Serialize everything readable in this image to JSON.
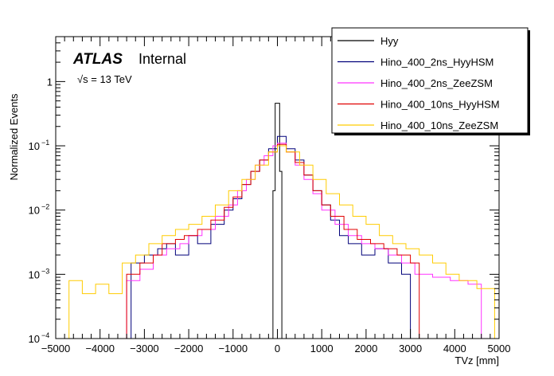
{
  "chart_data": {
    "type": "line",
    "title": "",
    "xlabel": "TVz [mm]",
    "ylabel": "Normalized Events",
    "xlim": [
      -5000,
      5000
    ],
    "ylim": [
      0.0001,
      5
    ],
    "yscale": "log",
    "x_ticks": [
      -5000,
      -4000,
      -3000,
      -2000,
      -1000,
      0,
      1000,
      2000,
      3000,
      4000,
      5000
    ],
    "x_tick_labels": [
      "−5000",
      "−4000",
      "−3000",
      "−2000",
      "−1000",
      "0",
      "1000",
      "2000",
      "3000",
      "4000",
      "5000"
    ],
    "y_ticks": [
      {
        "value": 0.0001,
        "label": "10",
        "exp": "−4"
      },
      {
        "value": 0.001,
        "label": "10",
        "exp": "−3"
      },
      {
        "value": 0.01,
        "label": "10",
        "exp": "−2"
      },
      {
        "value": 0.1,
        "label": "10",
        "exp": "−1"
      },
      {
        "value": 1,
        "label": "1",
        "exp": ""
      }
    ],
    "annotations": {
      "experiment": "ATLAS",
      "status": "Internal",
      "energy": "√s = 13 TeV"
    },
    "legend_position": "top-right",
    "series": [
      {
        "name": "Hyy",
        "color": "#000000",
        "points": [
          [
            -100,
            0.0001
          ],
          [
            -100,
            0.02
          ],
          [
            -50,
            0.05
          ],
          [
            -50,
            0.46
          ],
          [
            50,
            0.46
          ],
          [
            50,
            0.04
          ],
          [
            100,
            0.02
          ],
          [
            100,
            0.0001
          ]
        ]
      },
      {
        "name": "Hino_400_2ns_HyyHSM",
        "color": "#00007a",
        "points": [
          [
            -3400,
            0.0001
          ],
          [
            -3300,
            0.0015
          ],
          [
            -3000,
            0.002
          ],
          [
            -2700,
            0.0025
          ],
          [
            -2500,
            0.003
          ],
          [
            -2300,
            0.002
          ],
          [
            -2000,
            0.004
          ],
          [
            -1800,
            0.003
          ],
          [
            -1500,
            0.006
          ],
          [
            -1200,
            0.01
          ],
          [
            -1000,
            0.015
          ],
          [
            -800,
            0.025
          ],
          [
            -600,
            0.04
          ],
          [
            -400,
            0.06
          ],
          [
            -200,
            0.09
          ],
          [
            0,
            0.14
          ],
          [
            200,
            0.09
          ],
          [
            400,
            0.06
          ],
          [
            600,
            0.035
          ],
          [
            800,
            0.02
          ],
          [
            1000,
            0.012
          ],
          [
            1200,
            0.007
          ],
          [
            1400,
            0.004
          ],
          [
            1600,
            0.003
          ],
          [
            1900,
            0.002
          ],
          [
            2200,
            0.0025
          ],
          [
            2500,
            0.0015
          ],
          [
            2800,
            0.001
          ],
          [
            3000,
            0.0001
          ]
        ]
      },
      {
        "name": "Hino_400_2ns_ZeeZSM",
        "color": "#ff33ff",
        "points": [
          [
            -3500,
            0.0001
          ],
          [
            -3400,
            0.0008
          ],
          [
            -3100,
            0.0012
          ],
          [
            -2800,
            0.002
          ],
          [
            -2500,
            0.0025
          ],
          [
            -2200,
            0.003
          ],
          [
            -2000,
            0.004
          ],
          [
            -1700,
            0.005
          ],
          [
            -1400,
            0.008
          ],
          [
            -1100,
            0.012
          ],
          [
            -900,
            0.02
          ],
          [
            -700,
            0.03
          ],
          [
            -500,
            0.05
          ],
          [
            -300,
            0.07
          ],
          [
            -100,
            0.1
          ],
          [
            0,
            0.11
          ],
          [
            200,
            0.08
          ],
          [
            400,
            0.05
          ],
          [
            600,
            0.03
          ],
          [
            800,
            0.018
          ],
          [
            1000,
            0.01
          ],
          [
            1300,
            0.006
          ],
          [
            1600,
            0.004
          ],
          [
            1900,
            0.003
          ],
          [
            2200,
            0.0025
          ],
          [
            2500,
            0.002
          ],
          [
            2800,
            0.0015
          ],
          [
            3100,
            0.001
          ],
          [
            3500,
            0.0009
          ],
          [
            3900,
            0.0008
          ],
          [
            4300,
            0.0007
          ],
          [
            4600,
            0.0001
          ]
        ]
      },
      {
        "name": "Hino_400_10ns_HyyHSM",
        "color": "#e00000",
        "points": [
          [
            -3600,
            0.0001
          ],
          [
            -3400,
            0.001
          ],
          [
            -3100,
            0.0015
          ],
          [
            -2800,
            0.002
          ],
          [
            -2600,
            0.003
          ],
          [
            -2300,
            0.0035
          ],
          [
            -2100,
            0.004
          ],
          [
            -1800,
            0.005
          ],
          [
            -1500,
            0.007
          ],
          [
            -1200,
            0.011
          ],
          [
            -1000,
            0.016
          ],
          [
            -800,
            0.025
          ],
          [
            -600,
            0.04
          ],
          [
            -400,
            0.06
          ],
          [
            -200,
            0.08
          ],
          [
            0,
            0.105
          ],
          [
            200,
            0.08
          ],
          [
            400,
            0.055
          ],
          [
            600,
            0.035
          ],
          [
            800,
            0.02
          ],
          [
            1000,
            0.012
          ],
          [
            1200,
            0.008
          ],
          [
            1500,
            0.005
          ],
          [
            1800,
            0.0035
          ],
          [
            2100,
            0.003
          ],
          [
            2400,
            0.0025
          ],
          [
            2700,
            0.002
          ],
          [
            3000,
            0.0015
          ],
          [
            3200,
            0.0001
          ]
        ]
      },
      {
        "name": "Hino_400_10ns_ZeeZSM",
        "color": "#ffcc00",
        "points": [
          [
            -4800,
            0.0001
          ],
          [
            -4700,
            0.0008
          ],
          [
            -4400,
            0.0005
          ],
          [
            -4100,
            0.0007
          ],
          [
            -3800,
            0.0005
          ],
          [
            -3500,
            0.0015
          ],
          [
            -3200,
            0.002
          ],
          [
            -2900,
            0.003
          ],
          [
            -2600,
            0.004
          ],
          [
            -2300,
            0.005
          ],
          [
            -2000,
            0.006
          ],
          [
            -1700,
            0.008
          ],
          [
            -1400,
            0.012
          ],
          [
            -1100,
            0.02
          ],
          [
            -800,
            0.03
          ],
          [
            -500,
            0.05
          ],
          [
            -200,
            0.08
          ],
          [
            0,
            0.1
          ],
          [
            200,
            0.08
          ],
          [
            500,
            0.05
          ],
          [
            800,
            0.03
          ],
          [
            1100,
            0.018
          ],
          [
            1400,
            0.012
          ],
          [
            1700,
            0.008
          ],
          [
            2000,
            0.006
          ],
          [
            2300,
            0.004
          ],
          [
            2600,
            0.003
          ],
          [
            2900,
            0.0025
          ],
          [
            3200,
            0.002
          ],
          [
            3500,
            0.0015
          ],
          [
            3800,
            0.001
          ],
          [
            4100,
            0.0008
          ],
          [
            4500,
            0.0006
          ],
          [
            4900,
            0.0001
          ]
        ]
      }
    ]
  }
}
